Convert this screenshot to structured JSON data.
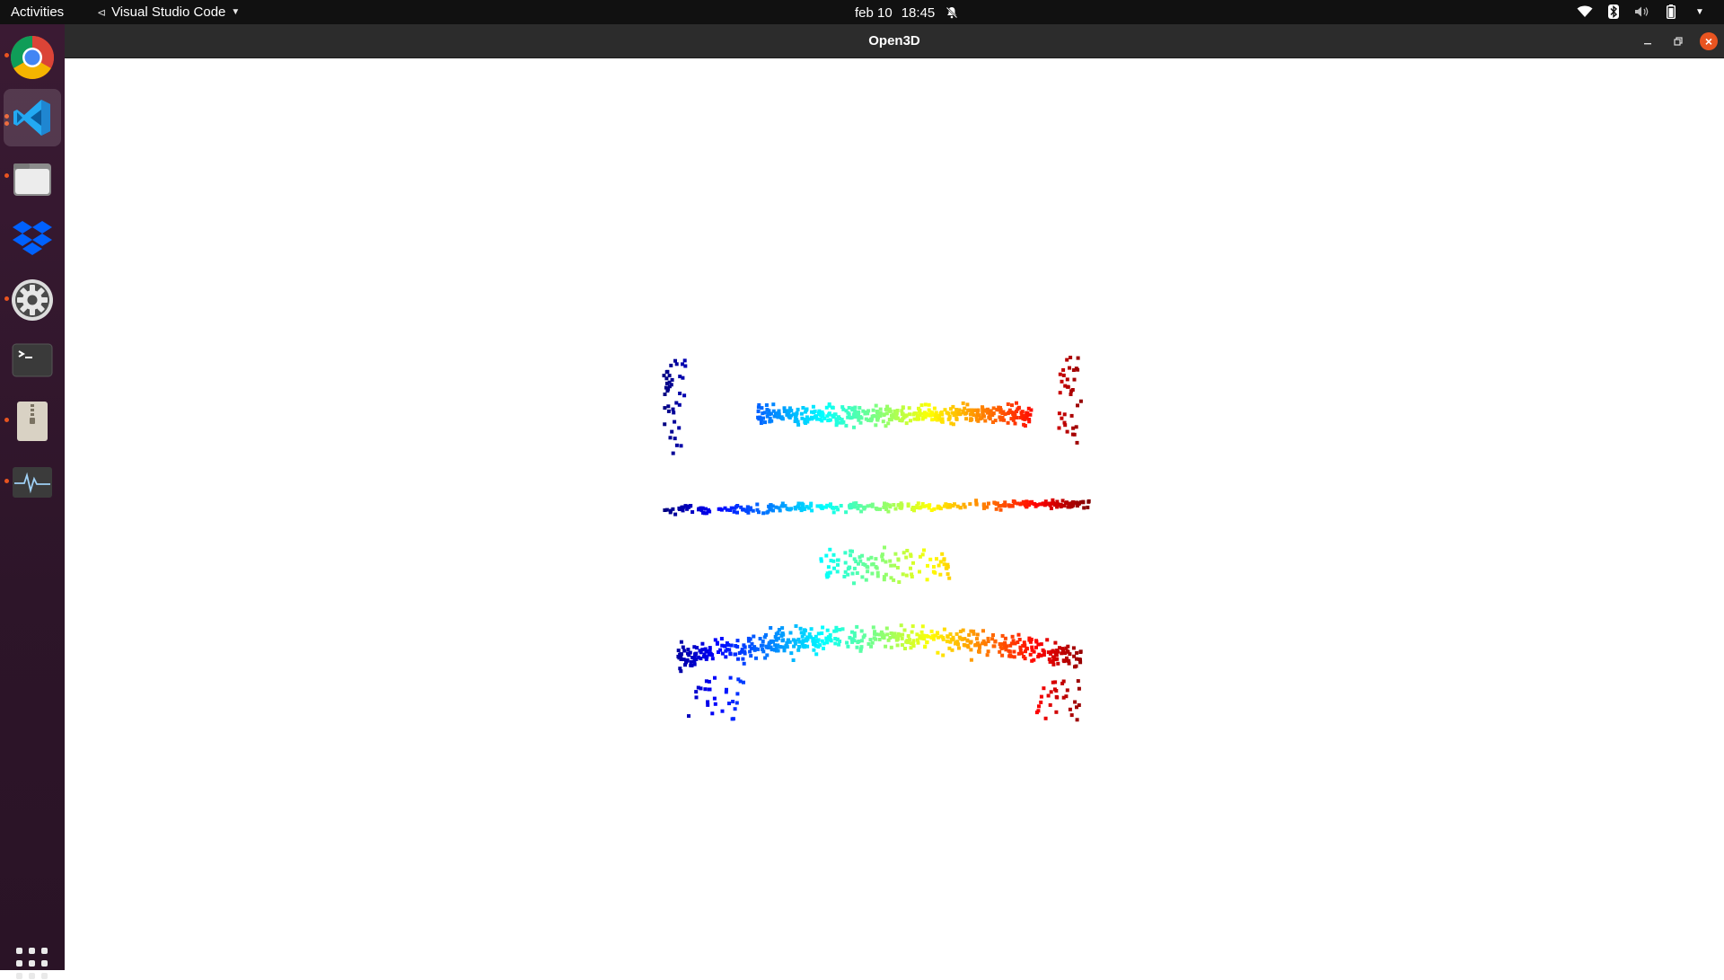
{
  "topbar": {
    "activities": "Activities",
    "app_menu_label": "Visual Studio Code",
    "date": "feb 10",
    "time": "18:45",
    "tray_icons": [
      "wifi-icon",
      "bluetooth-icon",
      "volume-muted-icon",
      "battery-icon",
      "system-menu-caret-icon"
    ]
  },
  "dock": {
    "items": [
      {
        "name": "google-chrome",
        "running": true,
        "active": false
      },
      {
        "name": "visual-studio-code",
        "running": true,
        "active": true
      },
      {
        "name": "files",
        "running": true,
        "active": false
      },
      {
        "name": "dropbox",
        "running": false,
        "active": false
      },
      {
        "name": "settings",
        "running": true,
        "active": false
      },
      {
        "name": "terminal",
        "running": false,
        "active": false
      },
      {
        "name": "archive-manager",
        "running": true,
        "active": false
      },
      {
        "name": "system-monitor",
        "running": true,
        "active": false
      }
    ],
    "show_apps": "show-applications-icon"
  },
  "window": {
    "title": "Open3D",
    "controls": [
      "minimize-icon",
      "restore-icon",
      "close-icon"
    ],
    "viewport": {
      "background": "#ffffff",
      "content": "point-cloud",
      "colormap": "jet"
    }
  },
  "colors": {
    "topbar": "#111111",
    "dock": "#2d1529",
    "titlebar": "#2c2c2c",
    "accent": "#e95420"
  }
}
